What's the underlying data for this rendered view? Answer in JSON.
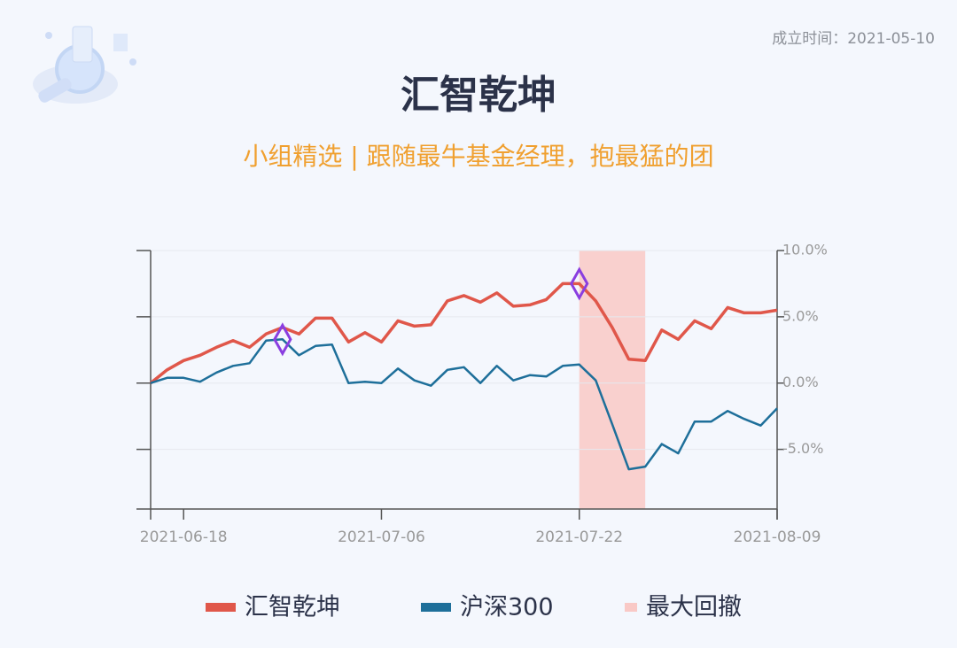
{
  "header": {
    "founded": "成立时间：2021-05-10"
  },
  "chart_data": {
    "type": "line",
    "title": "汇智乾坤",
    "subtitle": "小组精选 | 跟随最牛基金经理，抱最猛的团",
    "categories": [
      null,
      null,
      "2021-06-18",
      null,
      null,
      null,
      null,
      null,
      null,
      null,
      null,
      null,
      null,
      null,
      "2021-07-06",
      null,
      null,
      null,
      null,
      null,
      null,
      null,
      null,
      null,
      null,
      null,
      "2021-07-22",
      null,
      null,
      null,
      null,
      null,
      null,
      null,
      null,
      null,
      null,
      null,
      "2021-08-09"
    ],
    "series": [
      {
        "name": "汇智乾坤",
        "color": "#e0574a",
        "values": [
          0,
          1.0,
          1.7,
          2.1,
          2.7,
          3.2,
          2.7,
          3.7,
          4.2,
          3.7,
          4.9,
          4.9,
          3.1,
          3.8,
          3.1,
          4.7,
          4.3,
          4.4,
          6.2,
          6.6,
          6.1,
          6.8,
          5.8,
          5.9,
          6.3,
          7.5,
          7.5,
          6.2,
          4.2,
          1.8,
          1.7,
          4.0,
          3.3,
          4.7,
          4.1,
          5.7,
          5.3,
          5.3,
          5.5
        ]
      },
      {
        "name": "沪深300",
        "color": "#1e6f9a",
        "values": [
          0,
          0.4,
          0.4,
          0.1,
          0.8,
          1.3,
          1.5,
          3.2,
          3.3,
          2.1,
          2.8,
          2.9,
          0,
          0.1,
          0,
          1.1,
          0.2,
          -0.2,
          1.0,
          1.2,
          0,
          1.3,
          0.2,
          0.6,
          0.5,
          1.3,
          1.4,
          0.2,
          -3.1,
          -6.5,
          -6.3,
          -4.6,
          -5.3,
          -2.9,
          -2.9,
          -2.1,
          -2.7,
          -3.2,
          -1.9
        ]
      }
    ],
    "markers": [
      {
        "series": 1,
        "index": 8
      },
      {
        "series": 0,
        "index": 26
      }
    ],
    "marker_color": "#8a3ee0",
    "drawdown": {
      "name": "最大回撤",
      "color": "#f9c9c6",
      "start": 26,
      "end": 30
    },
    "ylim": [
      -9.5,
      10
    ],
    "y2ticks": [
      {
        "value": 10,
        "label": "10.0%"
      },
      {
        "value": 5,
        "label": "5.0%"
      },
      {
        "value": 0,
        "label": "0.0%"
      },
      {
        "value": -5,
        "label": "-5.0%"
      }
    ],
    "grid": true
  }
}
